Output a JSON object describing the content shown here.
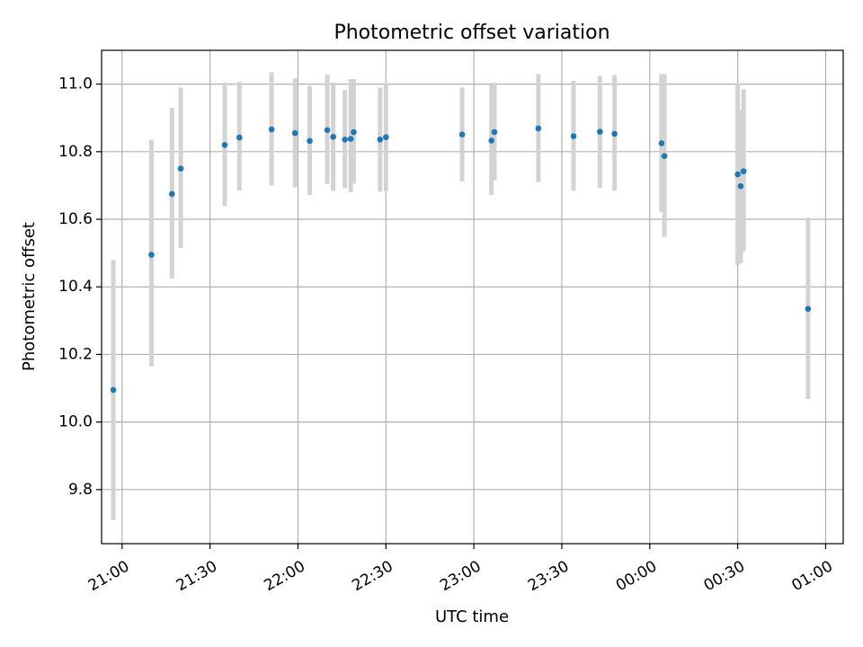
{
  "chart_data": {
    "type": "scatter",
    "title": "Photometric offset variation",
    "xlabel": "UTC time",
    "ylabel": "Photometric offset",
    "grid": true,
    "xlim": [
      "20:53",
      "01:06"
    ],
    "ylim": [
      9.64,
      11.1
    ],
    "x_ticks": [
      "21:00",
      "21:30",
      "22:00",
      "22:30",
      "23:00",
      "23:30",
      "00:00",
      "00:30",
      "01:00"
    ],
    "y_ticks": [
      "9.8",
      "10.0",
      "10.2",
      "10.4",
      "10.6",
      "10.8",
      "11.0"
    ],
    "colors": {
      "points": "#1f77b4",
      "error_bars": "#d3d3d3",
      "grid": "#b0b0b0"
    },
    "series": [
      {
        "points": [
          {
            "x": "20:57",
            "y": 10.095,
            "ylow": 9.71,
            "yhigh": 10.48
          },
          {
            "x": "21:10",
            "y": 10.495,
            "ylow": 10.165,
            "yhigh": 10.835
          },
          {
            "x": "21:17",
            "y": 10.675,
            "ylow": 10.425,
            "yhigh": 10.93
          },
          {
            "x": "21:20",
            "y": 10.75,
            "ylow": 10.515,
            "yhigh": 10.99
          },
          {
            "x": "21:35",
            "y": 10.82,
            "ylow": 10.64,
            "yhigh": 11.005
          },
          {
            "x": "21:40",
            "y": 10.842,
            "ylow": 10.685,
            "yhigh": 11.007
          },
          {
            "x": "21:51",
            "y": 10.866,
            "ylow": 10.7,
            "yhigh": 11.035
          },
          {
            "x": "21:59",
            "y": 10.855,
            "ylow": 10.695,
            "yhigh": 11.017
          },
          {
            "x": "22:04",
            "y": 10.832,
            "ylow": 10.672,
            "yhigh": 10.995
          },
          {
            "x": "22:10",
            "y": 10.864,
            "ylow": 10.705,
            "yhigh": 11.028
          },
          {
            "x": "22:12",
            "y": 10.844,
            "ylow": 10.684,
            "yhigh": 11.005
          },
          {
            "x": "22:16",
            "y": 10.836,
            "ylow": 10.692,
            "yhigh": 10.982
          },
          {
            "x": "22:18",
            "y": 10.838,
            "ylow": 10.68,
            "yhigh": 11.015
          },
          {
            "x": "22:19",
            "y": 10.858,
            "ylow": 10.705,
            "yhigh": 11.015
          },
          {
            "x": "22:28",
            "y": 10.836,
            "ylow": 10.682,
            "yhigh": 10.99
          },
          {
            "x": "22:30",
            "y": 10.843,
            "ylow": 10.684,
            "yhigh": 11.002
          },
          {
            "x": "22:56",
            "y": 10.851,
            "ylow": 10.712,
            "yhigh": 10.99
          },
          {
            "x": "23:06",
            "y": 10.833,
            "ylow": 10.672,
            "yhigh": 10.998
          },
          {
            "x": "23:07",
            "y": 10.858,
            "ylow": 10.715,
            "yhigh": 11.004
          },
          {
            "x": "23:22",
            "y": 10.869,
            "ylow": 10.71,
            "yhigh": 11.03
          },
          {
            "x": "23:34",
            "y": 10.846,
            "ylow": 10.684,
            "yhigh": 11.01
          },
          {
            "x": "23:43",
            "y": 10.859,
            "ylow": 10.692,
            "yhigh": 11.025
          },
          {
            "x": "23:48",
            "y": 10.853,
            "ylow": 10.685,
            "yhigh": 11.027
          },
          {
            "x": "00:04",
            "y": 10.825,
            "ylow": 10.622,
            "yhigh": 11.03
          },
          {
            "x": "00:05",
            "y": 10.787,
            "ylow": 10.548,
            "yhigh": 11.03
          },
          {
            "x": "00:30",
            "y": 10.733,
            "ylow": 10.465,
            "yhigh": 11.003
          },
          {
            "x": "00:31",
            "y": 10.698,
            "ylow": 10.47,
            "yhigh": 10.925
          },
          {
            "x": "00:32",
            "y": 10.742,
            "ylow": 10.505,
            "yhigh": 10.985
          },
          {
            "x": "00:54",
            "y": 10.335,
            "ylow": 10.068,
            "yhigh": 10.605
          }
        ]
      }
    ]
  }
}
